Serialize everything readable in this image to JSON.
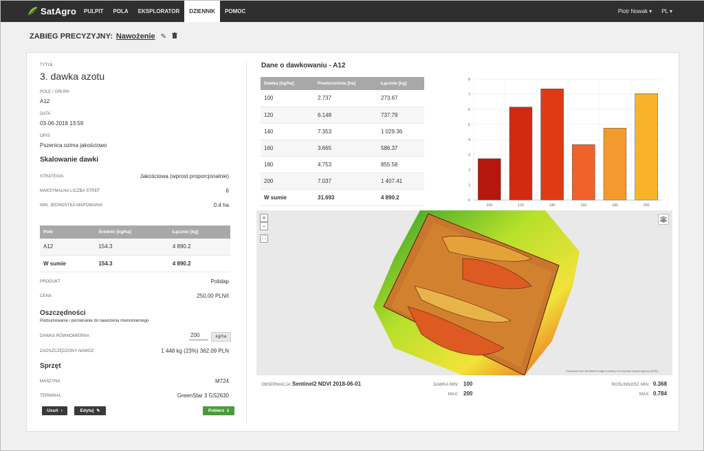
{
  "nav": {
    "brand": "SatAgro",
    "items": [
      "PULPIT",
      "POLA",
      "EKSPLORATOR",
      "DZIENNIK",
      "POMOC"
    ],
    "active_index": 3,
    "user": "Piotr Nowak ▾",
    "lang": "PL ▾"
  },
  "header": {
    "label": "ZABIEG PRECYZYJNY:",
    "value": "Nawożenie"
  },
  "details": {
    "title_label": "TYTUŁ",
    "title": "3. dawka azotu",
    "field_label": "POLE / GRUPA",
    "field": "A12",
    "date_label": "DATA",
    "date": "03-06-2018 13:59",
    "desc_label": "OPIS",
    "desc": "Pszenica ozima jakościowo"
  },
  "scaling": {
    "heading": "Skalowanie dawki",
    "rows": [
      {
        "label": "STRATEGIA",
        "value": "Jakościowa (wprost proporcjonalnie)"
      },
      {
        "label": "MAKSYMALNA LICZBA STREF",
        "value": "6"
      },
      {
        "label": "MIN. JEDNOSTKA MAPOWANIA",
        "value": "0.4 ha"
      }
    ]
  },
  "field_table": {
    "headers": [
      "Pole",
      "Średnio [kg/ha]",
      "Łącznie [kg]"
    ],
    "rows": [
      [
        "A12",
        "154.3",
        "4 890.2"
      ]
    ],
    "sum": [
      "W sumie",
      "154.3",
      "4 890.2"
    ]
  },
  "product": {
    "rows": [
      {
        "label": "PRODUKT",
        "value": "Polidap"
      },
      {
        "label": "CENA",
        "value": "250.00 PLN/t"
      }
    ]
  },
  "savings": {
    "heading": "Oszczędności",
    "subheading": "Podsumowanie i porównanie do nawożenia równomiernego",
    "uniform_label": "DAWKA RÓWNOMIERNA",
    "uniform_value": "200",
    "uniform_unit": "kg/ha",
    "saved_label": "ZAOSZCZĘDZONY NAWÓZ",
    "saved_value": "1 448 kg (23%)   362.09 PLN"
  },
  "equipment": {
    "heading": "Sprzęt",
    "rows": [
      {
        "label": "MASZYNA",
        "value": "M724"
      },
      {
        "label": "TERMINAL",
        "value": "GreenStar 3 GS2630"
      }
    ]
  },
  "buttons": {
    "delete": "Usuń",
    "edit": "Edytuj",
    "download": "Pobierz"
  },
  "dosing": {
    "heading": "Dane o dawkowaniu - A12",
    "headers": [
      "Dawka [kg/ha]",
      "Powierzchnia [ha]",
      "Łącznie [kg]"
    ],
    "rows": [
      [
        "100",
        "2.737",
        "273.67"
      ],
      [
        "120",
        "6.148",
        "737.79"
      ],
      [
        "140",
        "7.353",
        "1 029.36"
      ],
      [
        "160",
        "3.665",
        "586.37"
      ],
      [
        "180",
        "4.753",
        "855.58"
      ],
      [
        "200",
        "7.037",
        "1 407.41"
      ]
    ],
    "sum": [
      "W sumie",
      "31.693",
      "4 890.2"
    ]
  },
  "chart_data": {
    "type": "bar",
    "categories": [
      "100",
      "120",
      "140",
      "160",
      "180",
      "200"
    ],
    "values": [
      2.737,
      6.148,
      7.353,
      3.665,
      4.753,
      7.037
    ],
    "colors": [
      "#b5170f",
      "#d22a12",
      "#e03a15",
      "#f0622a",
      "#f39a2e",
      "#f7b42a"
    ],
    "ylim": [
      0,
      8
    ],
    "yticks": [
      "0",
      "1",
      "2",
      "3",
      "4",
      "5",
      "6",
      "7",
      "8"
    ],
    "grid": true,
    "title": "",
    "xlabel": "",
    "ylabel": ""
  },
  "map": {
    "zoom_in": "+",
    "zoom_out": "−",
    "fullscreen": "⛶",
    "attribution": "Produced from Sentinel2 image courtesy of European Space Agency (ESA).",
    "obs_label": "OBSERWACJA:",
    "obs_value": "Sentinel2 NDVI 2018-06-01",
    "dose_min_label": "DAWKA MIN:",
    "dose_min": "100",
    "dose_max_label": "MAX:",
    "dose_max": "200",
    "veg_min_label": "ROŚLINNOŚĆ MIN:",
    "veg_min": "0.368",
    "veg_max_label": "MAX:",
    "veg_max": "0.784"
  }
}
